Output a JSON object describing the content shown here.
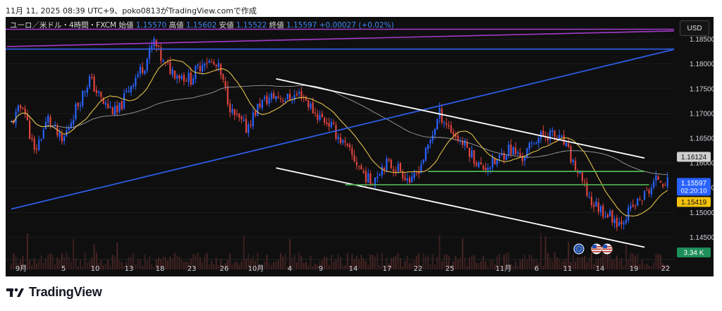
{
  "caption": "11月 11, 2025 08:39 UTC+9、poko0813がTradingView.comで作成",
  "legend": {
    "symbol": "ユーロ／米ドル・4時間・FXCM",
    "open_label": "始値",
    "open": "1.15570",
    "high_label": "高値",
    "high": "1.15602",
    "low_label": "安値",
    "low": "1.15522",
    "close_label": "終値",
    "close": "1.15597",
    "change": "+0.00027 (+0.02%)"
  },
  "currency_button": "USD",
  "brand": {
    "name": "TradingView",
    "logo_icon": "tradingview-logo-icon"
  },
  "colors": {
    "up": "#2962ff",
    "down": "#e0443e",
    "background": "#0f0f0f",
    "fast_ma": "#e3c04a",
    "slow_ma": "#9c9c9c",
    "trendline_blue": "#2d5be3",
    "trendline_purple": "#a33bc9",
    "channel": "#ffffff",
    "support": "#4caf50"
  },
  "chart_data": {
    "type": "candlestick",
    "timeframe": "4時間",
    "y_ticks": [
      "1.18500",
      "1.18000",
      "1.17500",
      "1.17000",
      "1.16500",
      "1.16000",
      "1.15500",
      "1.15000",
      "1.14500"
    ],
    "ylim": [
      1.1425,
      1.1875
    ],
    "x_ticks": [
      "9月",
      "5",
      "10",
      "13",
      "18",
      "23",
      "26",
      "10月",
      "4",
      "9",
      "14",
      "17",
      "22",
      "25",
      "11月",
      "6",
      "11",
      "14",
      "19",
      "22"
    ],
    "price_labels": {
      "gray_level": "1.16124",
      "last_price": "1.15597",
      "countdown": "02:20:10",
      "yellow_level": "1.15419",
      "volume": "3.34 K"
    },
    "close_path": [
      [
        0,
        1.168
      ],
      [
        5,
        1.172
      ],
      [
        10,
        1.162
      ],
      [
        16,
        1.169
      ],
      [
        22,
        1.164
      ],
      [
        28,
        1.171
      ],
      [
        34,
        1.177
      ],
      [
        40,
        1.172
      ],
      [
        46,
        1.17
      ],
      [
        52,
        1.176
      ],
      [
        58,
        1.18
      ],
      [
        62,
        1.1845
      ],
      [
        66,
        1.18
      ],
      [
        72,
        1.178
      ],
      [
        78,
        1.177
      ],
      [
        84,
        1.181
      ],
      [
        90,
        1.179
      ],
      [
        96,
        1.17
      ],
      [
        102,
        1.167
      ],
      [
        108,
        1.172
      ],
      [
        114,
        1.1735
      ],
      [
        120,
        1.173
      ],
      [
        126,
        1.174
      ],
      [
        132,
        1.17
      ],
      [
        138,
        1.168
      ],
      [
        144,
        1.164
      ],
      [
        150,
        1.16
      ],
      [
        156,
        1.156
      ],
      [
        162,
        1.16
      ],
      [
        168,
        1.159
      ],
      [
        174,
        1.156
      ],
      [
        180,
        1.162
      ],
      [
        186,
        1.17
      ],
      [
        192,
        1.166
      ],
      [
        198,
        1.163
      ],
      [
        204,
        1.159
      ],
      [
        210,
        1.16
      ],
      [
        216,
        1.163
      ],
      [
        222,
        1.161
      ],
      [
        228,
        1.165
      ],
      [
        234,
        1.166
      ],
      [
        240,
        1.164
      ],
      [
        246,
        1.158
      ],
      [
        252,
        1.152
      ],
      [
        258,
        1.15
      ],
      [
        264,
        1.148
      ],
      [
        270,
        1.151
      ],
      [
        276,
        1.154
      ],
      [
        281,
        1.157
      ],
      [
        285,
        1.156
      ]
    ],
    "total_candles": 286,
    "annotations": [
      "purple trendline",
      "blue horizontal line",
      "blue rising trendline",
      "white descending channel",
      "green support levels",
      "yellow moving average",
      "gray moving average"
    ],
    "event_icons": [
      "eu-flag-icon",
      "us-flag-icon",
      "us-flag-icon"
    ]
  }
}
